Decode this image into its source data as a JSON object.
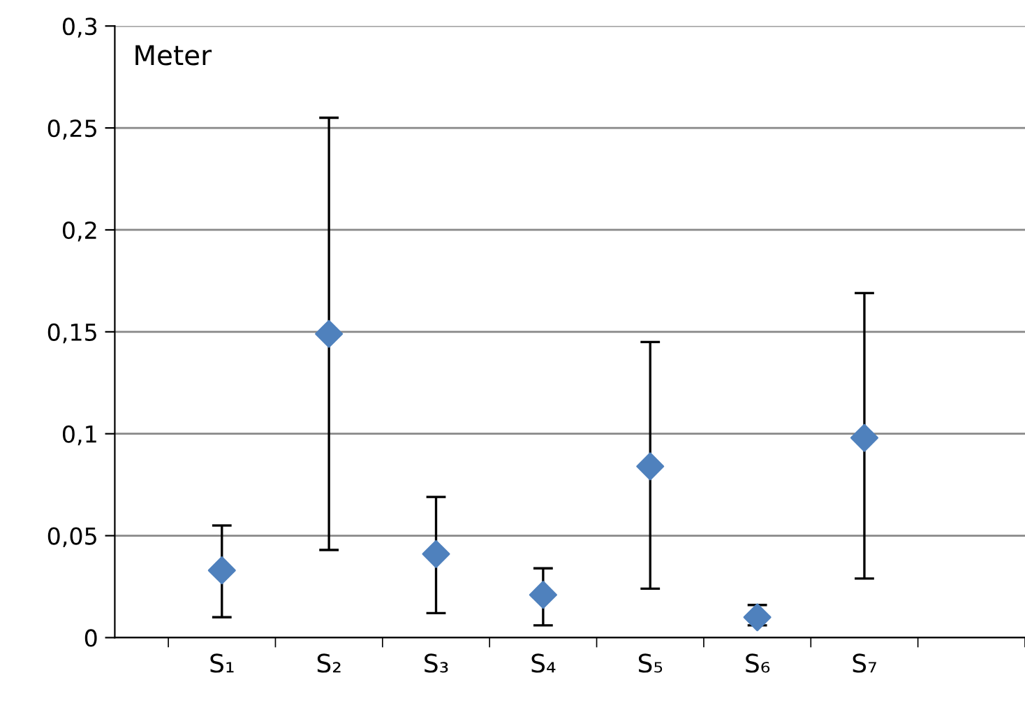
{
  "chart_data": {
    "type": "scatter",
    "ylabel": "Meter",
    "categories": [
      "S₁",
      "S₂",
      "S₃",
      "S₄",
      "S₅",
      "S₆",
      "S₇"
    ],
    "series": [
      {
        "color": "#4f81bd",
        "values": [
          0.033,
          0.149,
          0.041,
          0.021,
          0.084,
          0.01,
          0.098
        ],
        "errors": [
          [
            0.01,
            0.055
          ],
          [
            0.043,
            0.255
          ],
          [
            0.012,
            0.069
          ],
          [
            0.006,
            0.034
          ],
          [
            0.024,
            0.145
          ],
          [
            0.006,
            0.016
          ],
          [
            0.029,
            0.169
          ]
        ]
      }
    ],
    "ylim": [
      0,
      0.3
    ],
    "yticks": [
      {
        "value": 0,
        "label": "0"
      },
      {
        "value": 0.05,
        "label": "0,05"
      },
      {
        "value": 0.1,
        "label": "0,1"
      },
      {
        "value": 0.15,
        "label": "0,15"
      },
      {
        "value": 0.2,
        "label": "0,2"
      },
      {
        "value": 0.25,
        "label": "0,25"
      },
      {
        "value": 0.3,
        "label": "0,3"
      }
    ],
    "grid": "y",
    "marker": "diamond",
    "legend": false
  }
}
